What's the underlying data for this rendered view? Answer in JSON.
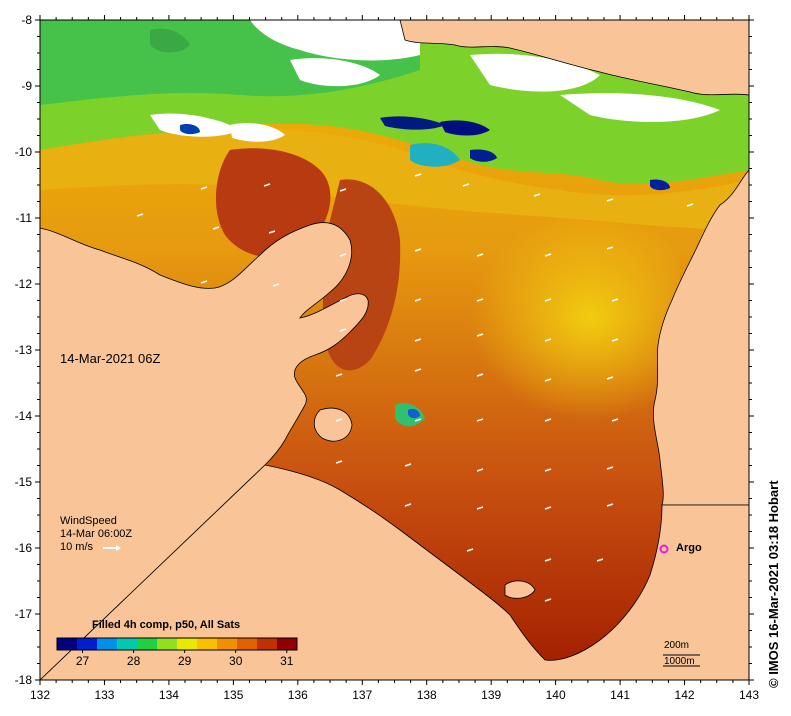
{
  "map": {
    "timestamp_label": "14-Mar-2021 06Z",
    "wind": {
      "title": "WindSpeed",
      "time": "14-Mar 06:00Z",
      "scale": "10 m/s"
    },
    "argo_label": "Argo",
    "scale_bar": {
      "depth_label_1": "200m",
      "depth_label_2": "1000m"
    },
    "credit": "© IMOS 16-Mar-2021 03:18 Hobart",
    "colorbar": {
      "title": "Filled 4h comp, p50, All Sats",
      "min": 26.5,
      "max": 31.2,
      "ticks": [
        "27",
        "28",
        "29",
        "30",
        "31"
      ],
      "tick_values": [
        27,
        28,
        29,
        30,
        31
      ]
    },
    "axes": {
      "lon_ticks": [
        "132",
        "133",
        "134",
        "135",
        "136",
        "137",
        "138",
        "139",
        "140",
        "141",
        "142",
        "143"
      ],
      "lon_values": [
        132,
        133,
        134,
        135,
        136,
        137,
        138,
        139,
        140,
        141,
        142,
        143
      ],
      "lat_ticks": [
        "-8",
        "-9",
        "-10",
        "-11",
        "-12",
        "-13",
        "-14",
        "-15",
        "-16",
        "-17",
        "-18"
      ],
      "lat_values": [
        -8,
        -9,
        -10,
        -11,
        -12,
        -13,
        -14,
        -15,
        -16,
        -17,
        -18
      ],
      "lon_range": [
        132,
        143
      ],
      "lat_range": [
        -18,
        -8
      ]
    },
    "colors": {
      "land": "#f9c497",
      "cloud": "#ffffff",
      "argo": "#e020e0",
      "palette": [
        "#000080",
        "#0020d0",
        "#0090e8",
        "#00c8b0",
        "#20d040",
        "#90e020",
        "#e8e800",
        "#f8c000",
        "#f09000",
        "#e06000",
        "#c03000",
        "#900000"
      ]
    }
  }
}
